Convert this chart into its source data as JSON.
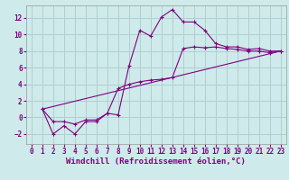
{
  "xlabel": "Windchill (Refroidissement éolien,°C)",
  "bg_color": "#ceeaea",
  "line_color": "#800080",
  "grid_color": "#b0d0d0",
  "xlim": [
    -0.5,
    23.5
  ],
  "ylim": [
    -3.2,
    13.5
  ],
  "xticks": [
    0,
    1,
    2,
    3,
    4,
    5,
    6,
    7,
    8,
    9,
    10,
    11,
    12,
    13,
    14,
    15,
    16,
    17,
    18,
    19,
    20,
    21,
    22,
    23
  ],
  "yticks": [
    -2,
    0,
    2,
    4,
    6,
    8,
    10,
    12
  ],
  "line1_x": [
    1,
    2,
    3,
    4,
    5,
    6,
    7,
    8,
    9,
    10,
    11,
    12,
    13,
    14,
    15,
    16,
    17,
    18,
    19,
    20,
    21,
    22,
    23
  ],
  "line1_y": [
    1,
    -2,
    -1,
    -2,
    -0.5,
    -0.5,
    0.5,
    0.3,
    6.2,
    10.5,
    9.8,
    12.1,
    13.0,
    11.5,
    11.5,
    10.5,
    8.9,
    8.5,
    8.5,
    8.2,
    8.3,
    8.0,
    8.0
  ],
  "line2_x": [
    1,
    2,
    3,
    4,
    5,
    6,
    7,
    8,
    9,
    10,
    11,
    12,
    13,
    14,
    15,
    16,
    17,
    18,
    19,
    20,
    21,
    22,
    23
  ],
  "line2_y": [
    1,
    -0.5,
    -0.5,
    -0.8,
    -0.3,
    -0.3,
    0.5,
    3.5,
    4.0,
    4.3,
    4.5,
    4.6,
    4.8,
    8.3,
    8.5,
    8.4,
    8.5,
    8.3,
    8.2,
    8.0,
    8.0,
    7.8,
    8.0
  ],
  "line3_x": [
    1,
    23
  ],
  "line3_y": [
    1,
    8.0
  ],
  "tick_fontsize": 5.5,
  "axis_fontsize": 6.5
}
